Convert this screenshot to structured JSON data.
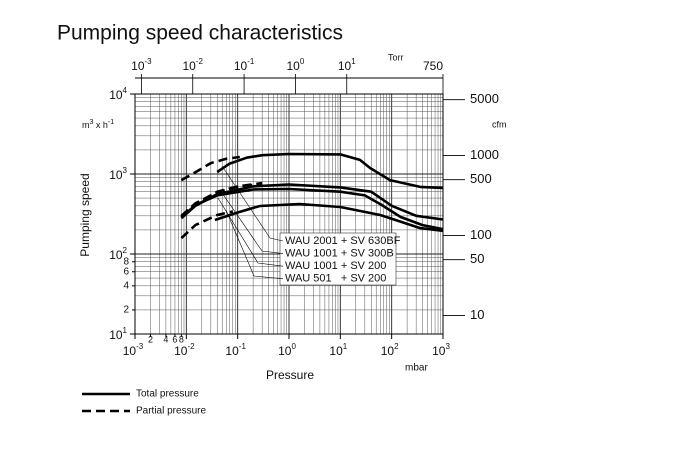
{
  "chart_data": {
    "type": "line",
    "title": "Pumping speed characteristics",
    "x_label": "Pressure",
    "y_label": "Pumping speed",
    "x_unit": "mbar",
    "x2_unit": "Torr",
    "y2_unit": "cfm",
    "y_unit": {
      "base": "m",
      "sup": "3",
      "mid": " x h",
      "sup2": "-1"
    },
    "log_x": true,
    "log_y": true,
    "grid": true,
    "xlim": [
      0.001,
      1000
    ],
    "ylim": [
      10,
      10000
    ],
    "xticks": [
      {
        "value": 0.001,
        "label": "10",
        "sup": "-3"
      },
      {
        "value": 0.01,
        "label": "10",
        "sup": "-2"
      },
      {
        "value": 0.1,
        "label": "10",
        "sup": "-1"
      },
      {
        "value": 1,
        "label": "10",
        "sup": "0"
      },
      {
        "value": 10,
        "label": "10",
        "sup": "1"
      },
      {
        "value": 100,
        "label": "10",
        "sup": "2"
      },
      {
        "value": 1000,
        "label": "10",
        "sup": "3"
      }
    ],
    "xminor_ticks": [
      {
        "value": 0.002,
        "label": "2"
      },
      {
        "value": 0.004,
        "label": "4"
      },
      {
        "value": 0.006,
        "label": "6"
      },
      {
        "value": 0.008,
        "label": "8"
      }
    ],
    "yticks": [
      {
        "value": 10,
        "label": "10",
        "sup": "1"
      },
      {
        "value": 100,
        "label": "10",
        "sup": "2"
      },
      {
        "value": 1000,
        "label": "10",
        "sup": "3"
      },
      {
        "value": 10000,
        "label": "10",
        "sup": "4"
      }
    ],
    "yminor_ticks": [
      {
        "value": 20,
        "label": "2"
      },
      {
        "value": 40,
        "label": "4"
      },
      {
        "value": 60,
        "label": "6"
      },
      {
        "value": 80,
        "label": "8"
      }
    ],
    "x2lim": [
      0.00075,
      750
    ],
    "x2ticks": [
      {
        "value": 0.001,
        "label": "10",
        "sup": "-3"
      },
      {
        "value": 0.01,
        "label": "10",
        "sup": "-2"
      },
      {
        "value": 0.1,
        "label": "10",
        "sup": "-1"
      },
      {
        "value": 1,
        "label": "10",
        "sup": "0"
      },
      {
        "value": 10,
        "label": "10",
        "sup": "1"
      },
      750
    ],
    "y2lim": [
      5.886,
      5886
    ],
    "y2ticks": [
      10,
      50,
      100,
      500,
      1000,
      5000
    ],
    "series": [
      {
        "name": "WAU 2001 + SV 630BF",
        "partial": {
          "x": [
            0.008,
            0.015,
            0.03,
            0.06,
            0.11
          ],
          "values": [
            840,
            1050,
            1370,
            1550,
            1630
          ]
        },
        "total": {
          "x": [
            0.04,
            0.07,
            0.15,
            0.3,
            1,
            10,
            24,
            38,
            93,
            360,
            1000
          ],
          "values": [
            1060,
            1350,
            1600,
            1720,
            1780,
            1760,
            1500,
            1190,
            840,
            690,
            670
          ]
        }
      },
      {
        "name": "WAU 1001 + SV 300B",
        "partial": {
          "x": [
            0.008,
            0.015,
            0.04,
            0.1,
            0.3
          ],
          "values": [
            290,
            420,
            600,
            700,
            770
          ]
        },
        "total": {
          "x": [
            0.008,
            0.015,
            0.04,
            0.2,
            1,
            10,
            40,
            100,
            300,
            1000
          ],
          "values": [
            280,
            400,
            560,
            700,
            740,
            680,
            600,
            400,
            300,
            270
          ]
        }
      },
      {
        "name": "WAU 1001 + SV 200",
        "partial": {
          "x": [
            0.008,
            0.015,
            0.04,
            0.1,
            0.3
          ],
          "values": [
            300,
            430,
            590,
            690,
            750
          ]
        },
        "total": {
          "x": [
            0.008,
            0.015,
            0.04,
            0.2,
            1,
            10,
            30,
            60,
            150,
            400,
            1000
          ],
          "values": [
            285,
            410,
            540,
            640,
            650,
            600,
            540,
            420,
            290,
            230,
            205
          ]
        }
      },
      {
        "name": "WAU 501   + SV 200",
        "partial": {
          "x": [
            0.008,
            0.015,
            0.04,
            0.08
          ],
          "values": [
            158,
            230,
            307,
            340
          ]
        },
        "total": {
          "x": [
            0.036,
            0.1,
            0.27,
            1.6,
            10,
            60,
            360,
            1000
          ],
          "values": [
            266,
            330,
            398,
            422,
            387,
            307,
            211,
            195
          ]
        }
      }
    ],
    "legend": [
      {
        "label": "Total pressure",
        "style": "total"
      },
      {
        "label": "Partial pressure",
        "style": "partial"
      }
    ]
  }
}
